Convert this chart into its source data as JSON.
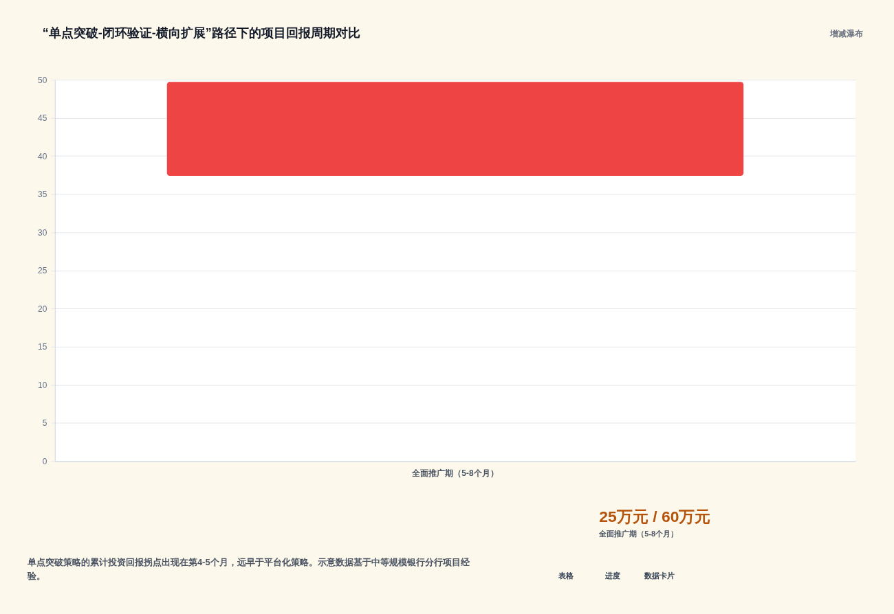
{
  "chart_data": [
    {
      "type": "bar",
      "title": "“单点突破-闭环验证-横向扩展”路径下的项目回报周期对比",
      "categories": [
        "全面推广期（5-8个月）"
      ],
      "base": [
        37.4
      ],
      "values": [
        12.3
      ],
      "color": "#ef4444",
      "ylim": [
        0,
        50
      ],
      "yticks": [
        0,
        5,
        10,
        15,
        20,
        25,
        30,
        35,
        40,
        45,
        50
      ],
      "grid": "y",
      "annotations": [
        "增减瀑布",
        "单点突破策略的累计投资回报拐点出现在第4-5个月，远早于平台化策略。示意数据基于中等规模银行分行项目经验。",
        "表格",
        "进度",
        "数据卡片"
      ]
    },
    {
      "type": "other",
      "annotations": [
        "25万元 / 60万元",
        "全面推广期（5-8个月）"
      ]
    }
  ]
}
